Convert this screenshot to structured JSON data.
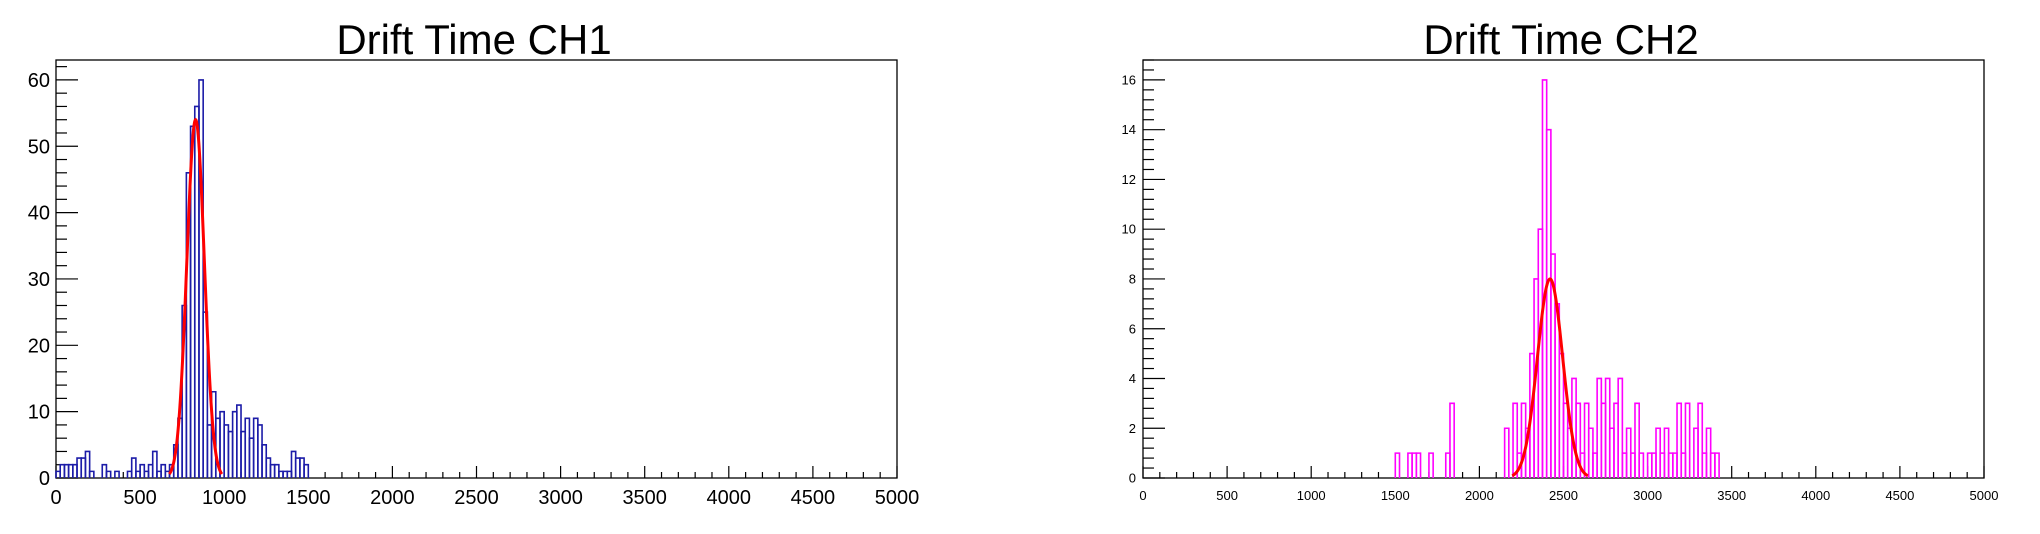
{
  "chart_data": [
    {
      "type": "histogram",
      "title": "Drift Time CH1",
      "xlabel": "",
      "ylabel": "",
      "xlim": [
        0,
        5000
      ],
      "ylim": [
        0,
        63
      ],
      "bin_width": 25,
      "x_ticks": [
        0,
        500,
        1000,
        1500,
        2000,
        2500,
        3000,
        3500,
        4000,
        4500,
        5000
      ],
      "y_ticks": [
        0,
        10,
        20,
        30,
        40,
        50,
        60
      ],
      "hist_color": "#1c1ca8",
      "fit_color": "#ff0000",
      "bins": [
        [
          0,
          1
        ],
        [
          25,
          2
        ],
        [
          50,
          2
        ],
        [
          75,
          2
        ],
        [
          100,
          2
        ],
        [
          125,
          3
        ],
        [
          150,
          3
        ],
        [
          175,
          4
        ],
        [
          200,
          1
        ],
        [
          275,
          2
        ],
        [
          300,
          1
        ],
        [
          325,
          0
        ],
        [
          350,
          1
        ],
        [
          375,
          0
        ],
        [
          425,
          1
        ],
        [
          450,
          3
        ],
        [
          475,
          1
        ],
        [
          500,
          2
        ],
        [
          525,
          1
        ],
        [
          550,
          2
        ],
        [
          575,
          4
        ],
        [
          600,
          1
        ],
        [
          625,
          2
        ],
        [
          650,
          1
        ],
        [
          675,
          2
        ],
        [
          700,
          5
        ],
        [
          725,
          9
        ],
        [
          750,
          26
        ],
        [
          775,
          46
        ],
        [
          800,
          53
        ],
        [
          825,
          56
        ],
        [
          850,
          60
        ],
        [
          875,
          25
        ],
        [
          900,
          8
        ],
        [
          925,
          13
        ],
        [
          950,
          9
        ],
        [
          975,
          10
        ],
        [
          1000,
          8
        ],
        [
          1025,
          7
        ],
        [
          1050,
          10
        ],
        [
          1075,
          11
        ],
        [
          1100,
          7
        ],
        [
          1125,
          9
        ],
        [
          1150,
          6
        ],
        [
          1175,
          9
        ],
        [
          1200,
          8
        ],
        [
          1225,
          5
        ],
        [
          1250,
          3
        ],
        [
          1275,
          2
        ],
        [
          1300,
          2
        ],
        [
          1325,
          1
        ],
        [
          1350,
          1
        ],
        [
          1375,
          1
        ],
        [
          1400,
          4
        ],
        [
          1425,
          3
        ],
        [
          1450,
          3
        ],
        [
          1475,
          2
        ]
      ],
      "fit": {
        "function": "gaus",
        "constant": 54,
        "mean": 830,
        "sigma": 52
      }
    },
    {
      "type": "histogram",
      "title": "Drift Time CH2",
      "xlabel": "",
      "ylabel": "",
      "xlim": [
        0,
        5000
      ],
      "ylim": [
        0,
        16.8
      ],
      "bin_width": 25,
      "x_ticks": [
        0,
        500,
        1000,
        1500,
        2000,
        2500,
        3000,
        3500,
        4000,
        4500,
        5000
      ],
      "y_ticks": [
        0,
        2,
        4,
        6,
        8,
        10,
        12,
        14,
        16
      ],
      "hist_color": "#ff00ff",
      "fit_color": "#ff0000",
      "bins": [
        [
          1500,
          1
        ],
        [
          1575,
          1
        ],
        [
          1600,
          1
        ],
        [
          1625,
          1
        ],
        [
          1700,
          1
        ],
        [
          1800,
          1
        ],
        [
          1825,
          3
        ],
        [
          2150,
          2
        ],
        [
          2200,
          3
        ],
        [
          2225,
          1
        ],
        [
          2250,
          3
        ],
        [
          2275,
          2
        ],
        [
          2300,
          5
        ],
        [
          2325,
          8
        ],
        [
          2350,
          10
        ],
        [
          2375,
          16
        ],
        [
          2400,
          14
        ],
        [
          2425,
          9
        ],
        [
          2450,
          7
        ],
        [
          2475,
          5
        ],
        [
          2500,
          3
        ],
        [
          2525,
          2
        ],
        [
          2550,
          4
        ],
        [
          2575,
          3
        ],
        [
          2600,
          1
        ],
        [
          2625,
          3
        ],
        [
          2650,
          2
        ],
        [
          2675,
          1
        ],
        [
          2700,
          4
        ],
        [
          2725,
          3
        ],
        [
          2750,
          4
        ],
        [
          2775,
          2
        ],
        [
          2800,
          3
        ],
        [
          2825,
          4
        ],
        [
          2850,
          1
        ],
        [
          2875,
          2
        ],
        [
          2900,
          1
        ],
        [
          2925,
          3
        ],
        [
          2950,
          1
        ],
        [
          3000,
          1
        ],
        [
          3025,
          1
        ],
        [
          3050,
          2
        ],
        [
          3075,
          1
        ],
        [
          3100,
          2
        ],
        [
          3125,
          1
        ],
        [
          3150,
          1
        ],
        [
          3175,
          3
        ],
        [
          3200,
          1
        ],
        [
          3225,
          3
        ],
        [
          3275,
          2
        ],
        [
          3300,
          3
        ],
        [
          3325,
          1
        ],
        [
          3350,
          2
        ],
        [
          3375,
          1
        ],
        [
          3400,
          1
        ]
      ],
      "fit": {
        "function": "gaus",
        "constant": 8,
        "mean": 2420,
        "sigma": 75
      }
    }
  ]
}
